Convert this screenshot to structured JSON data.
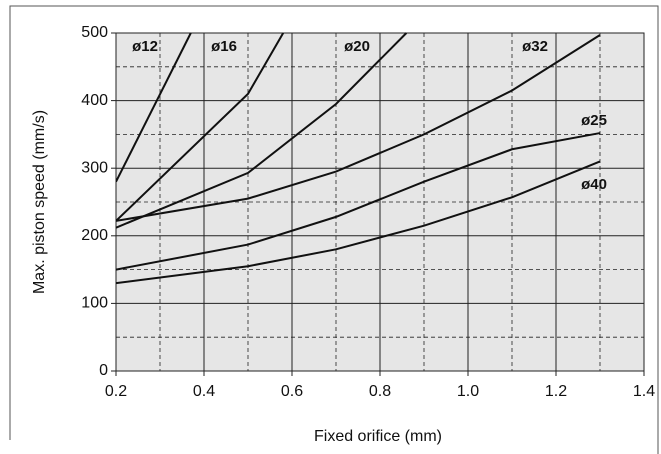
{
  "chart_data": {
    "type": "line",
    "x_label": "Fixed orifice (mm)",
    "y_label": "Max. piston speed (mm/s)",
    "series": [
      {
        "name": "ø12",
        "color": "#111111",
        "x": [
          0.2,
          0.37
        ],
        "values": [
          280,
          500
        ]
      },
      {
        "name": "ø16",
        "color": "#111111",
        "x": [
          0.2,
          0.5,
          0.58
        ],
        "values": [
          222,
          410,
          500
        ]
      },
      {
        "name": "ø20",
        "color": "#111111",
        "x": [
          0.2,
          0.5,
          0.7,
          0.86
        ],
        "values": [
          212,
          293,
          395,
          500
        ]
      },
      {
        "name": "ø32",
        "color": "#111111",
        "x": [
          0.2,
          0.5,
          0.7,
          0.9,
          1.1,
          1.3
        ],
        "values": [
          222,
          255,
          295,
          350,
          415,
          497
        ]
      },
      {
        "name": "ø25",
        "color": "#111111",
        "x": [
          0.2,
          0.5,
          0.7,
          0.9,
          1.1,
          1.3
        ],
        "values": [
          150,
          187,
          228,
          280,
          328,
          352
        ]
      },
      {
        "name": "ø40",
        "color": "#111111",
        "x": [
          0.2,
          0.5,
          0.7,
          0.9,
          1.1,
          1.3
        ],
        "values": [
          130,
          155,
          180,
          215,
          257,
          310
        ]
      }
    ],
    "xlim": [
      0.2,
      1.4
    ],
    "ylim": [
      0,
      500
    ],
    "xticks": [
      0.2,
      0.4,
      0.6,
      0.8,
      {
        "value": 1.0,
        "label": "1.0"
      },
      1.2,
      1.4
    ],
    "yticks": [
      0,
      100,
      200,
      300,
      400,
      500
    ],
    "xminorticks": [
      0.3,
      0.5,
      0.7,
      0.9,
      1.1,
      1.3
    ],
    "yminorticks": [
      50,
      150,
      250,
      350,
      450
    ],
    "grid": true,
    "plot_background": "#e6e6e6"
  }
}
